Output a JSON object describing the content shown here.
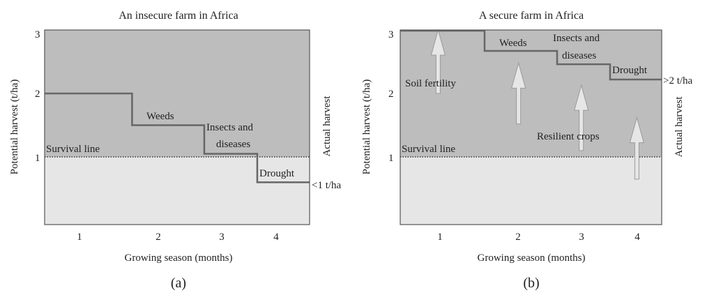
{
  "colors": {
    "upper_region": "#bdbdbd",
    "lower_region": "#e6e6e6",
    "step_line": "#666666",
    "arrow_fill": "#e6e6e6",
    "arrow_stroke": "#9a9a9a"
  },
  "chart_data": [
    {
      "type": "line",
      "panel_label": "(a)",
      "title": "An insecure farm in Africa",
      "xlabel": "Growing season (months)",
      "ylabel": "Potential harvest (t/ha)",
      "right_label": "Actual harvest",
      "xlim": [
        0.5,
        4.5
      ],
      "ylim": [
        0,
        3
      ],
      "x_ticks": [
        "1",
        "2",
        "3",
        "4"
      ],
      "y_ticks": [
        "1",
        "2",
        "3"
      ],
      "survival_line": {
        "y": 1,
        "label": "Survival line"
      },
      "step_series": [
        {
          "x_start": 0.5,
          "x_end": 1.82,
          "y": 2.0
        },
        {
          "x_start": 1.82,
          "x_end": 2.91,
          "y": 1.5
        },
        {
          "x_start": 2.91,
          "x_end": 3.71,
          "y": 1.05
        },
        {
          "x_start": 3.71,
          "x_end": 4.5,
          "y": 0.6
        }
      ],
      "annotations": {
        "weeds": "Weeds",
        "insects_1": "Insects and",
        "insects_2": "diseases",
        "drought": "Drought",
        "end_value": "<1 t/ha"
      }
    },
    {
      "type": "line",
      "panel_label": "(b)",
      "title": "A secure farm in Africa",
      "xlabel": "Growing season (months)",
      "ylabel": "Potential harvest (t/ha)",
      "right_label": "Actual harvest",
      "xlim": [
        0.5,
        4.5
      ],
      "ylim": [
        0,
        3
      ],
      "x_ticks": [
        "1",
        "2",
        "3",
        "4"
      ],
      "y_ticks": [
        "1",
        "2",
        "3"
      ],
      "survival_line": {
        "y": 1,
        "label": "Survival line"
      },
      "step_series": [
        {
          "x_start": 0.5,
          "x_end": 1.79,
          "y": 3.0
        },
        {
          "x_start": 1.79,
          "x_end": 2.9,
          "y": 2.67
        },
        {
          "x_start": 2.9,
          "x_end": 3.71,
          "y": 2.46
        },
        {
          "x_start": 3.71,
          "x_end": 4.5,
          "y": 2.22
        }
      ],
      "arrows": [
        {
          "x": 1.08,
          "y_from": 2.0,
          "y_to": 3.0
        },
        {
          "x": 2.31,
          "y_from": 1.52,
          "y_to": 2.48
        },
        {
          "x": 3.27,
          "y_from": 1.1,
          "y_to": 2.13
        },
        {
          "x": 4.12,
          "y_from": 0.65,
          "y_to": 1.62
        }
      ],
      "annotations": {
        "soil": "Soil fertility",
        "weeds": "Weeds",
        "insects_1": "Insects and",
        "insects_2": "diseases",
        "drought": "Drought",
        "resilient": "Resilient crops",
        "end_value": ">2 t/ha"
      }
    }
  ]
}
